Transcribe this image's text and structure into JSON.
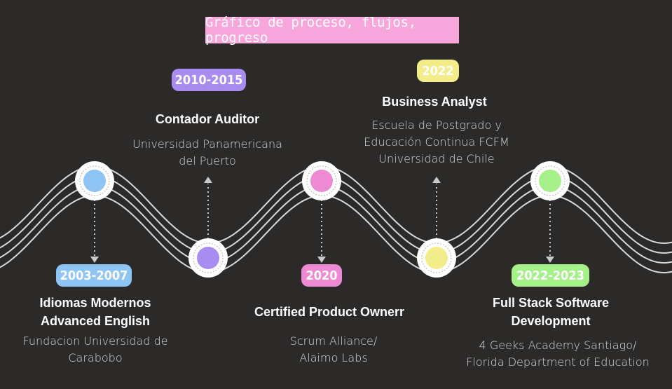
{
  "title": "Gráfico de proceso, flujos, progreso",
  "colors": {
    "background": "#2b2a29",
    "title_bg": "#f8a7dc",
    "blue": "#8ec5f5",
    "purple": "#a98cf0",
    "pink": "#ee8ad3",
    "yellow": "#f3ec8a",
    "green": "#a6f08a"
  },
  "milestones": [
    {
      "date": "2003-2007",
      "title_lines": [
        "Idiomas Modernos",
        "Advanced  English"
      ],
      "org_lines": [
        "Fundacion Universidad de",
        "Carabobo"
      ]
    },
    {
      "date": "2010-2015",
      "title_lines": [
        "Contador Auditor"
      ],
      "org_lines": [
        "Universidad Panamericana",
        "del Puerto"
      ]
    },
    {
      "date": "2020",
      "title_lines": [
        "Certified Product Ownerr"
      ],
      "org_lines": [
        "Scrum Alliance/",
        "Alaimo Labs"
      ]
    },
    {
      "date": "2022",
      "title_lines": [
        "Business Analyst"
      ],
      "org_lines": [
        "Escuela de Postgrado y",
        "Educación Continua FCFM",
        "Universidad de Chile"
      ]
    },
    {
      "date": "2022-2023",
      "title_lines": [
        "Full Stack  Software",
        "Development"
      ],
      "org_lines": [
        "4 Geeks Academy Santiago/",
        "Florida Department of Education"
      ]
    }
  ]
}
